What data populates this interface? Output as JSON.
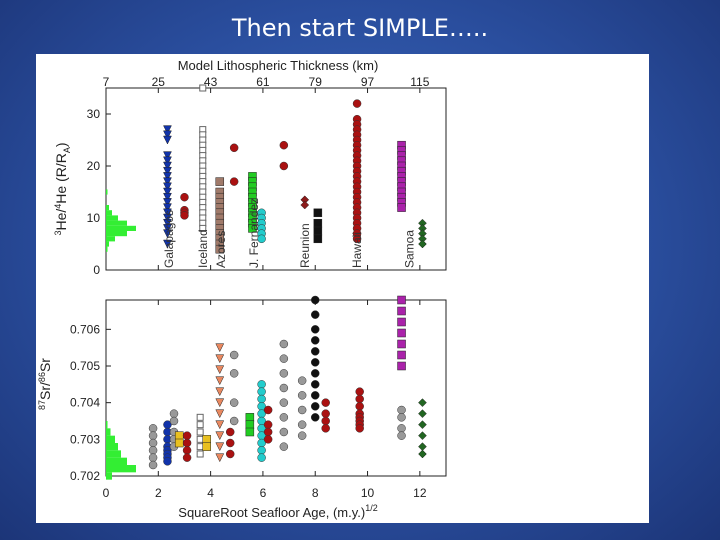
{
  "slide": {
    "title": "Then start SIMPLE….."
  },
  "chart_data": {
    "type": "scatter",
    "top_axis": {
      "label": "Model Lithospheric Thickness (km)",
      "ticks": [
        "7",
        "25",
        "43",
        "61",
        "79",
        "97",
        "115"
      ],
      "tick_positions_x": [
        0,
        2,
        4,
        6,
        8,
        10,
        12
      ]
    },
    "x_axis": {
      "label": "SquareRoot Seafloor Age, (m.y.)",
      "label_superscript": "1/2",
      "range": [
        0,
        13
      ],
      "ticks": [
        0,
        2,
        4,
        6,
        8,
        10,
        12
      ]
    },
    "panels": [
      {
        "name": "helium",
        "ylabel": {
          "sup1": "3",
          "base1": "He/",
          "sup2": "4",
          "base2": "He (R/R",
          "sub": "A",
          "close": ")"
        },
        "ylim": [
          0,
          35
        ],
        "yticks": [
          0,
          10,
          20,
          30
        ],
        "histogram": {
          "color": "#33ee33",
          "bins": [
            {
              "y": 4,
              "count": 0.05
            },
            {
              "y": 5,
              "count": 0.1
            },
            {
              "y": 6,
              "count": 0.3
            },
            {
              "y": 7,
              "count": 0.7
            },
            {
              "y": 8,
              "count": 1.0
            },
            {
              "y": 9,
              "count": 0.7
            },
            {
              "y": 10,
              "count": 0.4
            },
            {
              "y": 11,
              "count": 0.2
            },
            {
              "y": 12,
              "count": 0.1
            },
            {
              "y": 15,
              "count": 0.05
            }
          ]
        },
        "series": [
          {
            "name": "Galapagos",
            "color": "#1133aa",
            "marker": "triangle-down",
            "x": 2.35,
            "y": [
              27,
              26,
              25,
              22,
              21,
              20,
              19,
              18,
              17,
              16,
              15,
              14,
              13,
              12,
              11,
              10,
              9,
              8,
              7,
              5
            ]
          },
          {
            "name": "Galapagos-red",
            "color": "#aa1111",
            "marker": "circle",
            "x": 3.0,
            "y": [
              14,
              11.5,
              11,
              10.5
            ]
          },
          {
            "name": "Iceland",
            "color": "#666666",
            "marker": "square-open",
            "x": 3.7,
            "y": [
              35,
              27,
              26,
              25,
              24,
              23,
              22,
              21,
              20,
              19,
              18,
              17,
              16,
              15,
              14,
              13,
              12,
              11,
              10,
              9,
              8
            ]
          },
          {
            "name": "Azores",
            "color": "#a07a6a",
            "marker": "square",
            "x": 4.35,
            "y": [
              17,
              15,
              14,
              13,
              12,
              11,
              10,
              9,
              8,
              7,
              6,
              5,
              4
            ]
          },
          {
            "name": "Azores-red",
            "color": "#aa1111",
            "marker": "circle",
            "x": 4.9,
            "y": [
              23.5,
              17
            ]
          },
          {
            "name": "J. Fernandez",
            "color": "#22cc22",
            "marker": "square",
            "x": 5.6,
            "y": [
              18,
              17,
              16,
              15,
              14,
              13,
              12,
              11,
              10,
              9,
              8
            ]
          },
          {
            "name": "J. Fernandez-cyan",
            "color": "#22cccc",
            "marker": "circle",
            "x": 5.95,
            "y": [
              11,
              10,
              9,
              8,
              7,
              6
            ]
          },
          {
            "name": "J. Fernandez-red",
            "color": "#aa1111",
            "marker": "circle",
            "x": 6.8,
            "y": [
              24,
              20
            ]
          },
          {
            "name": "Reunion",
            "color": "#111111",
            "marker": "square",
            "x": 8.1,
            "y": [
              11,
              9,
              7.5,
              6
            ]
          },
          {
            "name": "Reunion-red",
            "color": "#8b1a1a",
            "marker": "diamond",
            "x": 7.6,
            "y": [
              13.5,
              12.5
            ]
          },
          {
            "name": "Hawaii",
            "color": "#aa1111",
            "marker": "circle",
            "x": 9.6,
            "y": [
              32,
              29,
              28,
              27,
              26,
              25,
              24,
              23,
              22,
              21,
              20,
              19,
              18,
              17,
              16,
              15,
              14,
              13,
              12,
              11,
              10,
              9,
              8,
              7,
              6
            ]
          },
          {
            "name": "Samoa",
            "color": "#aa22aa",
            "marker": "square",
            "x": 11.3,
            "y": [
              24,
              23,
              22,
              21,
              20,
              19,
              18,
              17,
              16,
              15,
              14,
              13,
              12
            ]
          },
          {
            "name": "Samoa-green",
            "color": "#226622",
            "marker": "diamond",
            "x": 12.1,
            "y": [
              9,
              8,
              7,
              6,
              5
            ]
          }
        ],
        "location_labels": [
          {
            "text": "Galapagos",
            "x": 2.4
          },
          {
            "text": "Iceland",
            "x": 3.7
          },
          {
            "text": "Azores",
            "x": 4.4
          },
          {
            "text": "J. Fernandez",
            "x": 5.65
          },
          {
            "text": "Reunion",
            "x": 7.6
          },
          {
            "text": "Hawaii",
            "x": 9.6
          },
          {
            "text": "Samoa",
            "x": 11.6
          }
        ]
      },
      {
        "name": "strontium",
        "ylabel": {
          "sup1": "87",
          "base1": "Sr/",
          "sup2": "86",
          "base2": "Sr"
        },
        "ylim": [
          0.702,
          0.7068
        ],
        "yticks": [
          0.702,
          0.703,
          0.704,
          0.705,
          0.706
        ],
        "yticklabels": [
          "0.702",
          "0.703",
          "0.704",
          "0.705",
          "0.706"
        ],
        "histogram": {
          "color": "#33ee33",
          "bins": [
            {
              "y": 0.702,
              "count": 0.2
            },
            {
              "y": 0.7022,
              "count": 1.0
            },
            {
              "y": 0.7024,
              "count": 0.7
            },
            {
              "y": 0.7026,
              "count": 0.5
            },
            {
              "y": 0.7028,
              "count": 0.4
            },
            {
              "y": 0.703,
              "count": 0.3
            },
            {
              "y": 0.7032,
              "count": 0.15
            },
            {
              "y": 0.7034,
              "count": 0.05
            }
          ]
        },
        "series": [
          {
            "name": "gray-1",
            "color": "#999999",
            "marker": "circle",
            "x": 1.8,
            "y": [
              0.7033,
              0.7031,
              0.7029,
              0.7027,
              0.7025,
              0.7023
            ]
          },
          {
            "name": "Galapagos",
            "color": "#1133aa",
            "marker": "circle",
            "x": 2.35,
            "y": [
              0.7034,
              0.7032,
              0.703,
              0.7028,
              0.7027,
              0.7026,
              0.7025,
              0.7024
            ]
          },
          {
            "name": "gray-2",
            "color": "#999999",
            "marker": "circle",
            "x": 2.6,
            "y": [
              0.7037,
              0.7035,
              0.7032,
              0.703,
              0.7028
            ]
          },
          {
            "name": "yellow",
            "color": "#e8c020",
            "marker": "square",
            "x": 2.8,
            "y": [
              0.7031,
              0.7029
            ]
          },
          {
            "name": "red-3",
            "color": "#aa1111",
            "marker": "circle",
            "x": 3.1,
            "y": [
              0.7031,
              0.7029,
              0.7027,
              0.7025
            ]
          },
          {
            "name": "Iceland",
            "color": "#666666",
            "marker": "square-open",
            "x": 3.6,
            "y": [
              0.7036,
              0.7034,
              0.7032,
              0.703,
              0.7028,
              0.7026
            ]
          },
          {
            "name": "yellow-2",
            "color": "#e8c020",
            "marker": "square",
            "x": 3.85,
            "y": [
              0.703,
              0.7028
            ]
          },
          {
            "name": "Azores",
            "color": "#e88860",
            "marker": "triangle-down",
            "x": 4.35,
            "y": [
              0.7055,
              0.7052,
              0.7049,
              0.7046,
              0.7043,
              0.704,
              0.7037,
              0.7034,
              0.7031,
              0.7028,
              0.7025
            ]
          },
          {
            "name": "Azores-red",
            "color": "#aa1111",
            "marker": "circle",
            "x": 4.75,
            "y": [
              0.7032,
              0.7029,
              0.7026
            ]
          },
          {
            "name": "gray-3",
            "color": "#999999",
            "marker": "circle",
            "x": 4.9,
            "y": [
              0.7053,
              0.7048,
              0.704,
              0.7035
            ]
          },
          {
            "name": "J. Fernandez",
            "color": "#22cc22",
            "marker": "square",
            "x": 5.5,
            "y": [
              0.7036,
              0.7034,
              0.7032
            ]
          },
          {
            "name": "J. Fernandez-cyan",
            "color": "#22cccc",
            "marker": "circle",
            "x": 5.95,
            "y": [
              0.7045,
              0.7043,
              0.7041,
              0.7039,
              0.7037,
              0.7035,
              0.7033,
              0.7031,
              0.7029,
              0.7027,
              0.7025
            ]
          },
          {
            "name": "red-6",
            "color": "#aa1111",
            "marker": "circle",
            "x": 6.2,
            "y": [
              0.7038,
              0.7034,
              0.7032,
              0.703
            ]
          },
          {
            "name": "gray-6",
            "color": "#999999",
            "marker": "circle",
            "x": 6.8,
            "y": [
              0.7056,
              0.7052,
              0.7048,
              0.7044,
              0.704,
              0.7036,
              0.7032,
              0.7028
            ]
          },
          {
            "name": "gray-7",
            "color": "#999999",
            "marker": "circle",
            "x": 7.5,
            "y": [
              0.7046,
              0.7042,
              0.7038,
              0.7034,
              0.7031
            ]
          },
          {
            "name": "Reunion",
            "color": "#111111",
            "marker": "circle",
            "x": 8.0,
            "y": [
              0.7068,
              0.7064,
              0.706,
              0.7057,
              0.7054,
              0.7051,
              0.7048,
              0.7045,
              0.7042,
              0.7039,
              0.7036
            ]
          },
          {
            "name": "Reunion-red",
            "color": "#aa1111",
            "marker": "circle",
            "x": 8.4,
            "y": [
              0.704,
              0.7037,
              0.7035,
              0.7033
            ]
          },
          {
            "name": "Hawaii",
            "color": "#aa1111",
            "marker": "circle",
            "x": 9.7,
            "y": [
              0.7043,
              0.7041,
              0.7039,
              0.7037,
              0.7036,
              0.7035,
              0.7034,
              0.7033
            ]
          },
          {
            "name": "gray-11",
            "color": "#999999",
            "marker": "circle",
            "x": 11.3,
            "y": [
              0.7038,
              0.7036,
              0.7033,
              0.7031
            ]
          },
          {
            "name": "Samoa",
            "color": "#aa22aa",
            "marker": "square",
            "x": 11.3,
            "y": [
              0.7068,
              0.7065,
              0.7062,
              0.7059,
              0.7056,
              0.7053,
              0.705
            ]
          },
          {
            "name": "Samoa-green",
            "color": "#226622",
            "marker": "diamond",
            "x": 12.1,
            "y": [
              0.704,
              0.7037,
              0.7034,
              0.7031,
              0.7028,
              0.7026
            ]
          }
        ]
      }
    ]
  }
}
